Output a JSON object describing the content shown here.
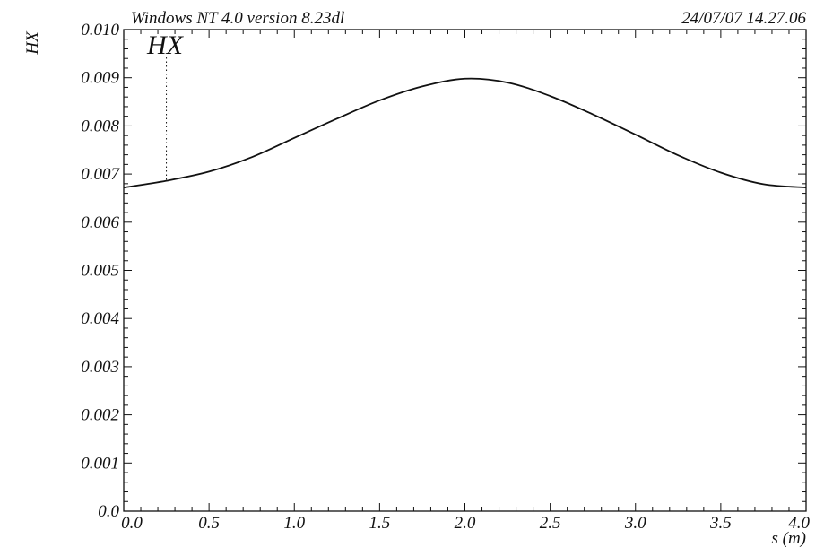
{
  "header": {
    "program": "Windows NT 4.0 version 8.23dl",
    "timestamp": "24/07/07  14.27.06"
  },
  "chart_data": {
    "type": "line",
    "title": "",
    "xlabel": "s (m)",
    "ylabel": "HX",
    "xlim": [
      0.0,
      4.0
    ],
    "ylim": [
      0.0,
      0.01
    ],
    "x_ticks": [
      0.0,
      0.5,
      1.0,
      1.5,
      2.0,
      2.5,
      3.0,
      3.5,
      4.0
    ],
    "x_tick_labels": [
      "0.0",
      "0.5",
      "1.0",
      "1.5",
      "2.0",
      "2.5",
      "3.0",
      "3.5",
      "4.0"
    ],
    "y_ticks": [
      0.0,
      0.001,
      0.002,
      0.003,
      0.004,
      0.005,
      0.006,
      0.007,
      0.008,
      0.009,
      0.01
    ],
    "y_tick_labels": [
      "0.0",
      "0.001",
      "0.002",
      "0.003",
      "0.004",
      "0.005",
      "0.006",
      "0.007",
      "0.008",
      "0.009",
      "0.010"
    ],
    "grid": false,
    "series": [
      {
        "name": "HX",
        "color": "#111111",
        "x": [
          0.0,
          0.25,
          0.5,
          0.75,
          1.0,
          1.25,
          1.5,
          1.75,
          2.0,
          2.25,
          2.5,
          2.75,
          3.0,
          3.25,
          3.5,
          3.75,
          4.0
        ],
        "y": [
          0.00672,
          0.00686,
          0.00705,
          0.00735,
          0.00775,
          0.00815,
          0.00853,
          0.00882,
          0.00898,
          0.0089,
          0.00862,
          0.00824,
          0.00782,
          0.00739,
          0.00703,
          0.00679,
          0.00672
        ]
      }
    ],
    "label_marker": {
      "x": 0.25
    }
  }
}
